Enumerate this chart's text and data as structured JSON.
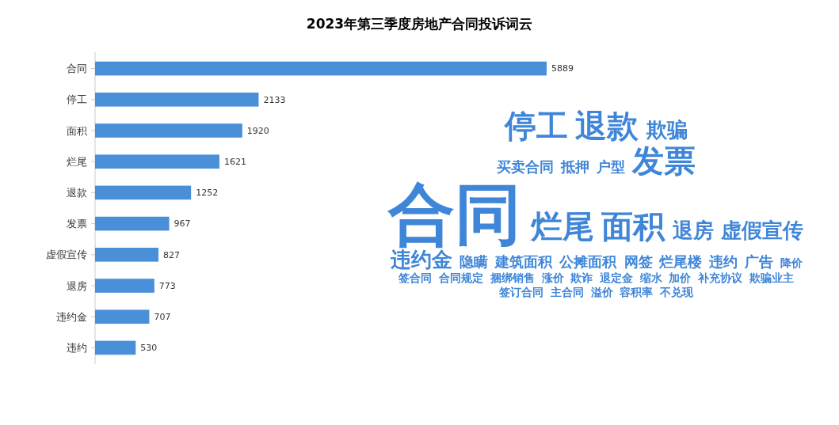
{
  "chart_data": [
    {
      "type": "bar",
      "title": "2023年第三季度房地产合同投诉词云",
      "orientation": "horizontal",
      "categories": [
        "合同",
        "停工",
        "面积",
        "烂尾",
        "退款",
        "发票",
        "虚假宣传",
        "退房",
        "违约金",
        "违约"
      ],
      "values": [
        5889,
        2133,
        1920,
        1621,
        1252,
        967,
        827,
        773,
        707,
        530
      ],
      "color": "#4a90d9",
      "tick_labels": "y",
      "data_labels": true
    },
    {
      "type": "other",
      "color": "#3f86d8",
      "annotations": [
        "合同",
        "停工",
        "退款",
        "发票",
        "面积",
        "烂尾",
        "退房",
        "虚假宣传",
        "违约金",
        "欺骗",
        "买卖合同",
        "抵押",
        "户型",
        "隐瞒",
        "建筑面积",
        "公摊面积",
        "网签",
        "烂尾楼",
        "违约",
        "广告",
        "降价",
        "签合同",
        "合同规定",
        "捆绑销售",
        "涨价",
        "欺诈",
        "退定金",
        "缩水",
        "加价",
        "补充协议",
        "欺骗业主",
        "签订合同",
        "主合同",
        "溢价",
        "容积率",
        "不兑现"
      ]
    }
  ]
}
